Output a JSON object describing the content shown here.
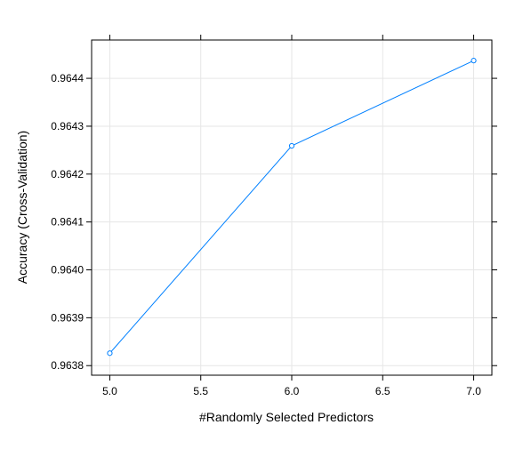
{
  "chart_data": {
    "type": "line",
    "title": "",
    "xlabel": "#Randomly Selected Predictors",
    "ylabel": "Accuracy (Cross-Validation)",
    "x": [
      5,
      6,
      7
    ],
    "series": [
      {
        "values": [
          0.963826,
          0.964259,
          0.964437
        ],
        "color": "#0080ff",
        "marker": "circle-open"
      }
    ],
    "xlim": [
      4.9,
      7.1
    ],
    "ylim": [
      0.96378,
      0.96448
    ],
    "x_ticks": [
      5.0,
      5.5,
      6.0,
      6.5,
      7.0
    ],
    "x_tick_labels": [
      "5.0",
      "5.5",
      "6.0",
      "6.5",
      "7.0"
    ],
    "y_ticks": [
      0.9638,
      0.9639,
      0.964,
      0.9641,
      0.9642,
      0.9643,
      0.9644
    ],
    "y_tick_labels": [
      "0.9638",
      "0.9639",
      "0.9640",
      "0.9641",
      "0.9642",
      "0.9643",
      "0.9644"
    ],
    "grid": true,
    "grid_color": "#e6e6e6",
    "frame_color": "#000000"
  }
}
